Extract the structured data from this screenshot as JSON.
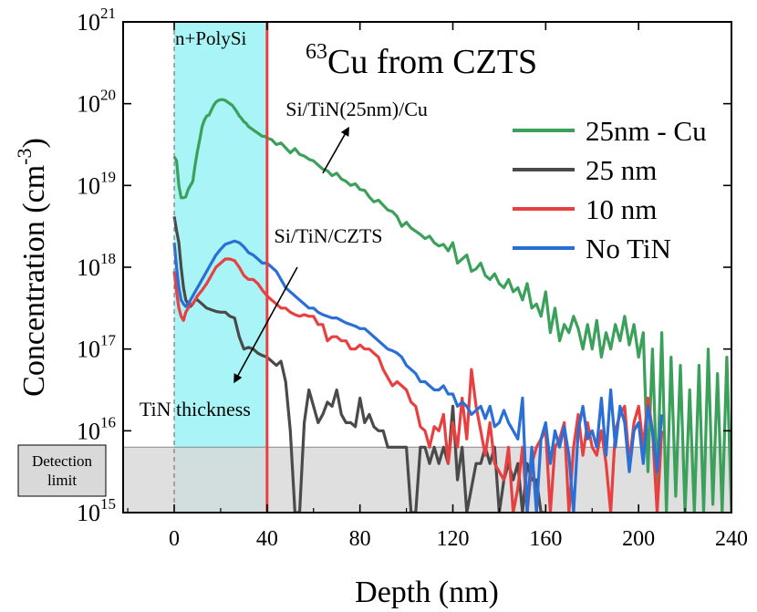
{
  "chart_data": {
    "type": "line",
    "title": "Cu from CZTS",
    "title_superscript": "63",
    "xlabel": "Depth (nm)",
    "ylabel": "Concentration (cm",
    "ylabel_superscript": "-3",
    "ylabel_suffix": ")",
    "xlim": [
      -22,
      240
    ],
    "ylim": [
      15,
      21
    ],
    "y_scale": "log",
    "x_ticks": [
      0,
      40,
      80,
      120,
      160,
      200,
      240
    ],
    "y_tick_base": "10",
    "y_tick_exponents": [
      "15",
      "16",
      "17",
      "18",
      "19",
      "20",
      "21"
    ],
    "legend_position": "right",
    "colors": {
      "green": "#3aa05a",
      "gray": "#4a4a4a",
      "red": "#e84040",
      "blue": "#2a6fd6",
      "cyan_region": "#a8f4f6",
      "boundary": "#e84040",
      "detection_fill": "#d9d9d9"
    },
    "regions": [
      {
        "label": "n+PolySi",
        "x_start": 0,
        "x_end": 40
      }
    ],
    "detection_limit": {
      "label_line1": "Detection",
      "label_line2": "limit",
      "log_level": 15.8
    },
    "annotations": [
      {
        "text": "Si/TiN(25nm)/Cu",
        "x": 48,
        "y": 19.85,
        "arrow_from": [
          64,
          19.15
        ],
        "arrow_to": [
          75,
          19.7
        ]
      },
      {
        "text": "Si/TiN/CZTS",
        "x": 43,
        "y": 18.3,
        "arrow_from": [
          53,
          18.0
        ],
        "arrow_to": [
          26,
          16.6
        ]
      },
      {
        "text": "TiN thickness",
        "x": -15,
        "y": 16.18
      }
    ],
    "series": [
      {
        "name": "25nm - Cu",
        "color": "#3aa05a",
        "x": [
          0,
          1,
          2,
          3,
          4,
          5,
          6,
          7,
          8,
          9,
          10,
          11,
          12,
          13,
          14,
          15,
          16,
          17,
          18,
          19,
          20,
          21,
          22,
          23,
          24,
          25,
          26,
          27,
          28,
          29,
          30,
          31,
          32,
          33,
          34,
          35,
          36,
          37,
          38,
          39,
          40,
          42,
          44,
          46,
          48,
          50,
          52,
          54,
          56,
          58,
          60,
          62,
          64,
          66,
          68,
          70,
          72,
          74,
          76,
          78,
          80,
          82,
          84,
          86,
          88,
          90,
          92,
          94,
          96,
          98,
          100,
          102,
          104,
          106,
          108,
          110,
          112,
          114,
          116,
          118,
          120,
          122,
          124,
          126,
          128,
          130,
          132,
          134,
          136,
          138,
          140,
          142,
          144,
          146,
          148,
          150,
          152,
          154,
          156,
          158,
          160,
          162,
          164,
          166,
          168,
          170,
          172,
          174,
          176,
          178,
          180,
          182,
          184,
          186,
          188,
          190,
          192,
          194,
          196,
          198,
          200,
          202,
          204,
          206,
          208,
          210,
          212,
          214,
          216,
          218,
          220,
          222,
          224,
          226,
          228,
          230,
          232,
          234,
          236,
          238,
          240
        ],
        "y": [
          19.35,
          19.3,
          19.0,
          18.85,
          18.85,
          18.86,
          18.95,
          19.0,
          19.05,
          19.25,
          19.42,
          19.56,
          19.72,
          19.8,
          19.85,
          19.86,
          19.92,
          19.98,
          20.02,
          20.04,
          20.05,
          20.05,
          20.04,
          20.02,
          20.0,
          19.98,
          19.94,
          19.9,
          19.85,
          19.82,
          19.78,
          19.76,
          19.72,
          19.7,
          19.68,
          19.66,
          19.64,
          19.62,
          19.6,
          19.6,
          19.58,
          19.56,
          19.5,
          19.52,
          19.46,
          19.4,
          19.45,
          19.38,
          19.36,
          19.32,
          19.3,
          19.25,
          19.2,
          19.18,
          19.12,
          19.15,
          19.08,
          19.05,
          19.0,
          19.02,
          18.95,
          18.94,
          18.86,
          18.8,
          18.82,
          18.76,
          18.7,
          18.68,
          18.62,
          18.5,
          18.55,
          18.48,
          18.44,
          18.4,
          18.35,
          18.38,
          18.3,
          18.26,
          18.28,
          18.2,
          18.3,
          18.05,
          18.1,
          18.15,
          17.95,
          17.98,
          18.05,
          17.9,
          17.85,
          17.92,
          17.8,
          17.75,
          17.85,
          17.7,
          17.75,
          17.6,
          17.8,
          17.5,
          17.55,
          17.4,
          17.7,
          17.2,
          17.5,
          17.1,
          17.3,
          17.2,
          17.4,
          17.25,
          17.0,
          17.3,
          17.0,
          17.35,
          16.9,
          17.2,
          17.0,
          17.3,
          17.1,
          17.4,
          17.05,
          17.3,
          16.9,
          17.2,
          15.5,
          17.0,
          15.3,
          17.2,
          15.0,
          16.9,
          15.2,
          16.8,
          15.0,
          16.5,
          15.0,
          16.8,
          15.0,
          17.0,
          15.1,
          16.7,
          15.0,
          16.9,
          15.0
        ]
      },
      {
        "name": "25 nm",
        "color": "#4a4a4a",
        "x": [
          0,
          1,
          2,
          3,
          4,
          5,
          6,
          7,
          8,
          9,
          10,
          12,
          14,
          16,
          18,
          20,
          22,
          24,
          26,
          28,
          30,
          32,
          34,
          36,
          38,
          40,
          42,
          44,
          46,
          48,
          50,
          52,
          54,
          56,
          58,
          60,
          62,
          64,
          66,
          68,
          70,
          72,
          74,
          76,
          78,
          80,
          82,
          84,
          86,
          88,
          90,
          92,
          94,
          96,
          98,
          100,
          102,
          104,
          106,
          108,
          110,
          112,
          114,
          116,
          118,
          120,
          122,
          124,
          126,
          128,
          130,
          132,
          134,
          136,
          138,
          140,
          142,
          144,
          146,
          148,
          150,
          152,
          154,
          156,
          158,
          160
        ],
        "y": [
          18.62,
          18.45,
          18.3,
          18.0,
          17.75,
          17.6,
          17.55,
          17.52,
          17.55,
          17.6,
          17.6,
          17.55,
          17.5,
          17.48,
          17.46,
          17.45,
          17.45,
          17.4,
          17.38,
          17.15,
          17.0,
          17.02,
          17.0,
          16.95,
          16.92,
          16.9,
          16.85,
          16.8,
          16.85,
          16.6,
          16.0,
          15.0,
          15.0,
          16.1,
          16.5,
          16.3,
          16.1,
          16.2,
          16.35,
          16.3,
          16.5,
          16.2,
          16.1,
          16.1,
          16.05,
          16.4,
          16.1,
          16.2,
          16.05,
          16.0,
          16.0,
          15.8,
          15.8,
          15.8,
          15.8,
          15.8,
          15.0,
          15.0,
          15.8,
          15.8,
          15.6,
          15.8,
          15.6,
          15.8,
          15.6,
          16.3,
          15.4,
          15.8,
          15.0,
          15.3,
          15.6,
          15.6,
          15.8,
          15.6,
          15.8,
          15.0,
          15.4,
          15.6,
          15.4,
          15.6,
          15.0,
          15.6,
          15.4,
          15.4,
          15.0,
          15.0
        ]
      },
      {
        "name": "10 nm",
        "color": "#e84040",
        "x": [
          0,
          1,
          2,
          3,
          4,
          5,
          6,
          7,
          8,
          9,
          10,
          12,
          14,
          16,
          18,
          20,
          22,
          24,
          26,
          28,
          30,
          32,
          34,
          36,
          38,
          40,
          42,
          44,
          46,
          48,
          50,
          52,
          54,
          56,
          58,
          60,
          62,
          64,
          66,
          68,
          70,
          72,
          74,
          76,
          78,
          80,
          82,
          84,
          86,
          88,
          90,
          92,
          94,
          96,
          98,
          100,
          102,
          104,
          106,
          108,
          110,
          112,
          114,
          116,
          118,
          120,
          122,
          124,
          126,
          128,
          130,
          132,
          134,
          136,
          138,
          140,
          142,
          144,
          146,
          148,
          150,
          152,
          154,
          156,
          158,
          160,
          162,
          164,
          166,
          168,
          170,
          172,
          174,
          176,
          178,
          180,
          182,
          184,
          186,
          188,
          190,
          192,
          194,
          196,
          198,
          200,
          202,
          204,
          206,
          208,
          210
        ],
        "y": [
          17.95,
          17.7,
          17.5,
          17.4,
          17.35,
          17.45,
          17.5,
          17.55,
          17.55,
          17.6,
          17.65,
          17.72,
          17.8,
          17.9,
          18.0,
          18.05,
          18.1,
          18.1,
          18.08,
          18.0,
          17.9,
          17.85,
          17.85,
          17.8,
          17.72,
          17.65,
          17.6,
          17.55,
          17.5,
          17.5,
          17.45,
          17.42,
          17.4,
          17.42,
          17.4,
          17.4,
          17.3,
          17.3,
          17.1,
          17.15,
          17.15,
          17.1,
          17.1,
          17.0,
          17.0,
          17.05,
          17.0,
          17.0,
          16.95,
          16.9,
          16.75,
          16.65,
          16.55,
          16.6,
          16.55,
          16.5,
          16.35,
          16.3,
          16.05,
          16.0,
          15.8,
          16.05,
          16.0,
          16.2,
          15.6,
          16.1,
          15.8,
          16.4,
          15.9,
          16.75,
          16.3,
          16.0,
          15.7,
          16.1,
          15.6,
          15.5,
          15.4,
          15.8,
          15.0,
          15.3,
          15.8,
          15.0,
          15.6,
          15.8,
          15.9,
          16.0,
          15.0,
          15.8,
          15.9,
          16.1,
          15.0,
          15.8,
          16.2,
          15.7,
          16.1,
          15.8,
          15.7,
          16.0,
          15.6,
          15.0,
          16.0,
          16.2,
          16.3,
          15.6,
          16.1,
          16.3,
          15.8,
          16.4,
          16.0,
          15.0,
          16.0
        ]
      },
      {
        "name": "No TiN",
        "color": "#2a6fd6",
        "x": [
          0,
          1,
          2,
          3,
          4,
          5,
          6,
          7,
          8,
          9,
          10,
          12,
          14,
          16,
          18,
          20,
          22,
          24,
          26,
          28,
          30,
          32,
          34,
          36,
          38,
          40,
          42,
          44,
          46,
          48,
          50,
          52,
          54,
          56,
          58,
          60,
          62,
          64,
          66,
          68,
          70,
          72,
          74,
          76,
          78,
          80,
          82,
          84,
          86,
          88,
          90,
          92,
          94,
          96,
          98,
          100,
          102,
          104,
          106,
          108,
          110,
          112,
          114,
          116,
          118,
          120,
          122,
          124,
          126,
          128,
          130,
          132,
          134,
          136,
          138,
          140,
          142,
          144,
          146,
          148,
          150,
          152,
          154,
          156,
          158,
          160,
          162,
          164,
          166,
          168,
          170,
          172,
          174,
          176,
          178,
          180,
          182,
          184,
          186,
          188,
          190,
          192,
          194,
          196,
          198,
          200,
          202,
          204,
          206,
          208,
          210
        ],
        "y": [
          18.3,
          18.0,
          17.75,
          17.6,
          17.55,
          17.52,
          17.55,
          17.6,
          17.65,
          17.7,
          17.75,
          17.85,
          17.95,
          18.05,
          18.15,
          18.22,
          18.28,
          18.3,
          18.32,
          18.3,
          18.25,
          18.18,
          18.15,
          18.1,
          18.05,
          18.05,
          18.0,
          17.95,
          17.85,
          17.75,
          17.7,
          17.65,
          17.6,
          17.55,
          17.5,
          17.5,
          17.45,
          17.42,
          17.4,
          17.38,
          17.38,
          17.35,
          17.32,
          17.3,
          17.28,
          17.25,
          17.25,
          17.2,
          17.15,
          17.1,
          17.05,
          17.0,
          16.98,
          16.95,
          16.9,
          16.8,
          16.75,
          16.7,
          16.6,
          16.6,
          16.55,
          16.5,
          16.5,
          16.55,
          16.45,
          16.45,
          16.3,
          16.35,
          16.3,
          16.2,
          16.25,
          16.3,
          16.15,
          16.3,
          16.05,
          16.1,
          16.25,
          16.1,
          16.0,
          15.9,
          16.4,
          15.0,
          15.8,
          15.0,
          15.9,
          16.1,
          15.6,
          16.0,
          15.8,
          16.05,
          15.7,
          15.0,
          16.0,
          16.3,
          15.9,
          16.0,
          15.8,
          16.4,
          15.7,
          16.5,
          15.8,
          16.3,
          16.1,
          15.5,
          16.0,
          16.1,
          15.6,
          16.3,
          16.0,
          15.5,
          16.2
        ]
      }
    ]
  }
}
